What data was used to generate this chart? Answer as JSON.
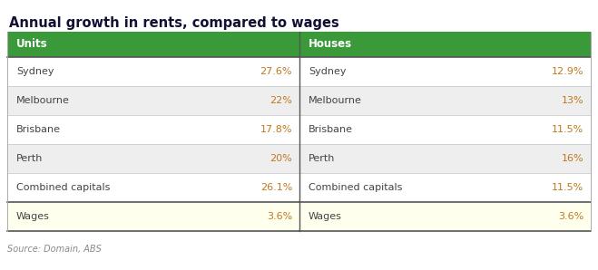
{
  "title": "Annual growth in rents, compared to wages",
  "header_color": "#3a9a3a",
  "header_text_color": "#ffffff",
  "header_left": "Units",
  "header_right": "Houses",
  "rows": [
    {
      "left_label": "Sydney",
      "left_val": "27.6%",
      "right_label": "Sydney",
      "right_val": "12.9%",
      "bg": "#ffffff"
    },
    {
      "left_label": "Melbourne",
      "left_val": "22%",
      "right_label": "Melbourne",
      "right_val": "13%",
      "bg": "#eeeeee"
    },
    {
      "left_label": "Brisbane",
      "left_val": "17.8%",
      "right_label": "Brisbane",
      "right_val": "11.5%",
      "bg": "#ffffff"
    },
    {
      "left_label": "Perth",
      "left_val": "20%",
      "right_label": "Perth",
      "right_val": "16%",
      "bg": "#eeeeee"
    },
    {
      "left_label": "Combined capitals",
      "left_val": "26.1%",
      "right_label": "Combined capitals",
      "right_val": "11.5%",
      "bg": "#ffffff"
    },
    {
      "left_label": "Wages",
      "left_val": "3.6%",
      "right_label": "Wages",
      "right_val": "3.6%",
      "bg": "#ffffee"
    }
  ],
  "value_color": "#c07820",
  "label_color": "#444444",
  "source_text": "Source: Domain, ABS",
  "header_font_size": 8.5,
  "row_font_size": 8.0,
  "title_font_size": 10.5,
  "source_font_size": 7.0
}
